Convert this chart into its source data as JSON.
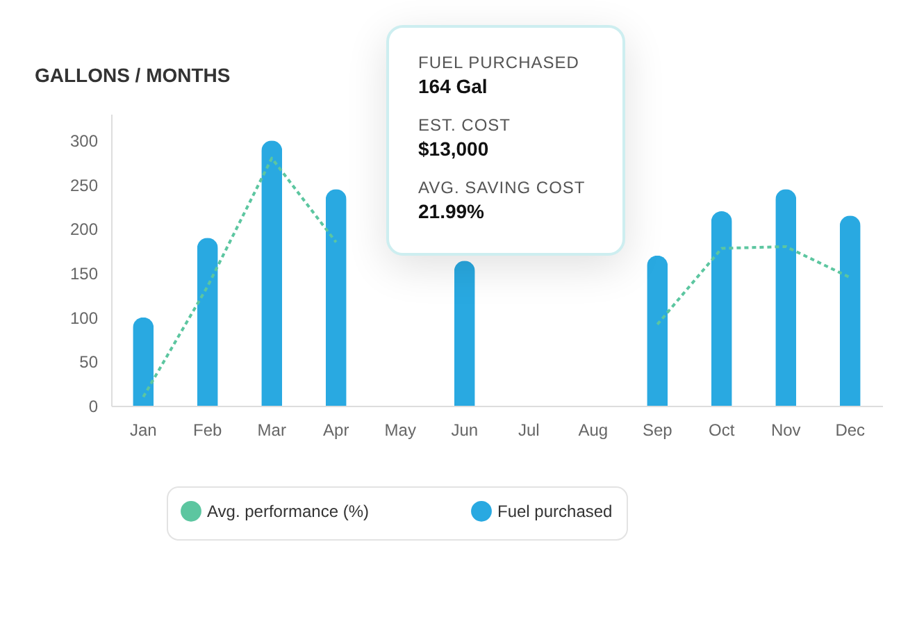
{
  "chart_data": {
    "type": "bar",
    "title": "GALLONS / MONTHS",
    "categories": [
      "Jan",
      "Feb",
      "Mar",
      "Apr",
      "May",
      "Jun",
      "Jul",
      "Aug",
      "Sep",
      "Oct",
      "Nov",
      "Dec"
    ],
    "series": [
      {
        "name": "Avg. performance (%)",
        "type": "line",
        "color": "#5cc6a0",
        "line_style": "dashed",
        "values": [
          10,
          135,
          280,
          185,
          null,
          null,
          null,
          null,
          92,
          178,
          180,
          145
        ]
      },
      {
        "name": "Fuel purchased",
        "color": "#29a9e1",
        "values": [
          100,
          190,
          300,
          245,
          null,
          164,
          null,
          null,
          170,
          220,
          245,
          215
        ]
      }
    ],
    "ylim": [
      0,
      330
    ],
    "yticks": [
      0,
      50,
      100,
      150,
      200,
      250,
      300
    ],
    "grid": false,
    "legend": "bottom",
    "annotations": [
      "FUEL PURCHASED",
      "164 Gal",
      "EST. COST",
      "$13,000",
      "AVG. SAVING COST",
      "21.99%"
    ]
  }
}
